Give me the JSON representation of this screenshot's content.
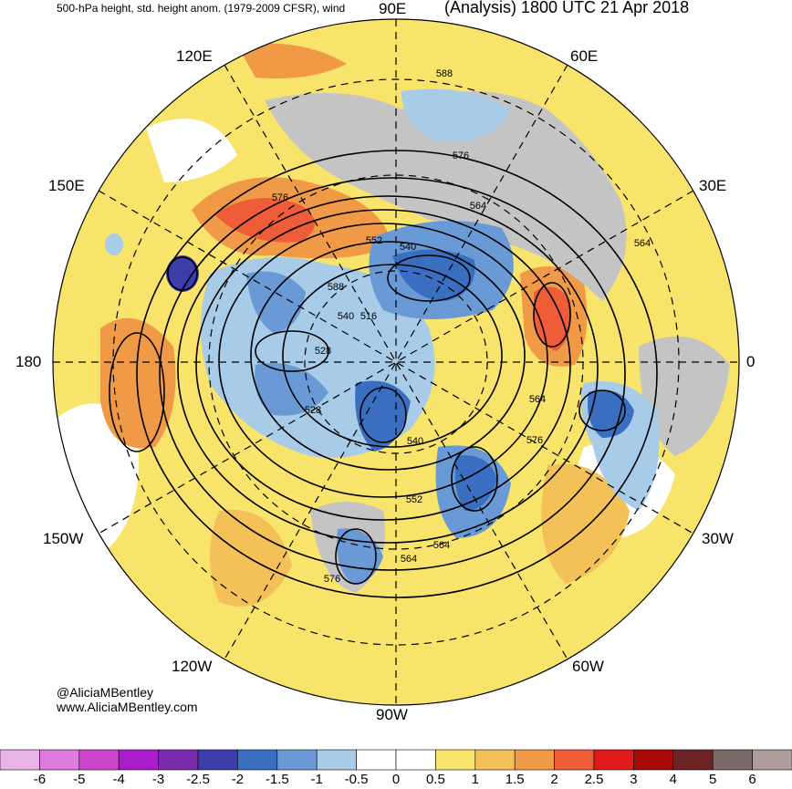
{
  "title": {
    "left": "500-hPa height, std. height anom. (1979-2009 CFSR), wind",
    "right": "(Analysis) 1800 UTC 21 Apr 2018"
  },
  "longitude_labels": {
    "lon_90e": "90E",
    "lon_60e": "60E",
    "lon_120e": "120E",
    "lon_30e": "30E",
    "lon_150e": "150E",
    "lon_180": "180",
    "lon_0": "0",
    "lon_150w": "150W",
    "lon_30w": "30W",
    "lon_120w": "120W",
    "lon_60w": "60W",
    "lon_90w": "90W"
  },
  "contour_labels": [
    "588",
    "576",
    "576",
    "564",
    "552",
    "540",
    "564",
    "588",
    "540",
    "516",
    "528",
    "528",
    "564",
    "540",
    "576",
    "552",
    "564",
    "576",
    "564"
  ],
  "credits": {
    "handle": "@AliciaMBentley",
    "website": "www.AliciaMBentley.com"
  },
  "colorbar": {
    "ticks": [
      "-6",
      "-5",
      "-4",
      "-3",
      "-2.5",
      "-2",
      "-1.5",
      "-1",
      "-0.5",
      "0",
      "0.5",
      "1",
      "1.5",
      "2",
      "2.5",
      "3",
      "4",
      "5",
      "6"
    ],
    "colors": [
      "#e8b4e8",
      "#e07ce0",
      "#cc44cc",
      "#aa1ccc",
      "#7a2aaa",
      "#3c3caa",
      "#3a6ec0",
      "#6a9ad6",
      "#a8cce8",
      "#ffffff",
      "#ffffff",
      "#f8e46a",
      "#f4c058",
      "#f09a48",
      "#ee5c38",
      "#e01a1a",
      "#a80a0a",
      "#6e2424",
      "#7a6a6a",
      "#b09c9c"
    ]
  },
  "colors": {
    "warm_light": "#f8e46a",
    "warm_mid": "#f4c058",
    "warm_strong": "#f09a48",
    "warm_peak": "#ee5c38",
    "cold_light": "#a8cce8",
    "cold_mid": "#6a9ad6",
    "cold_strong": "#3a6ec0",
    "cold_peak": "#3c3caa",
    "land_gray": "#c4c4c4"
  }
}
